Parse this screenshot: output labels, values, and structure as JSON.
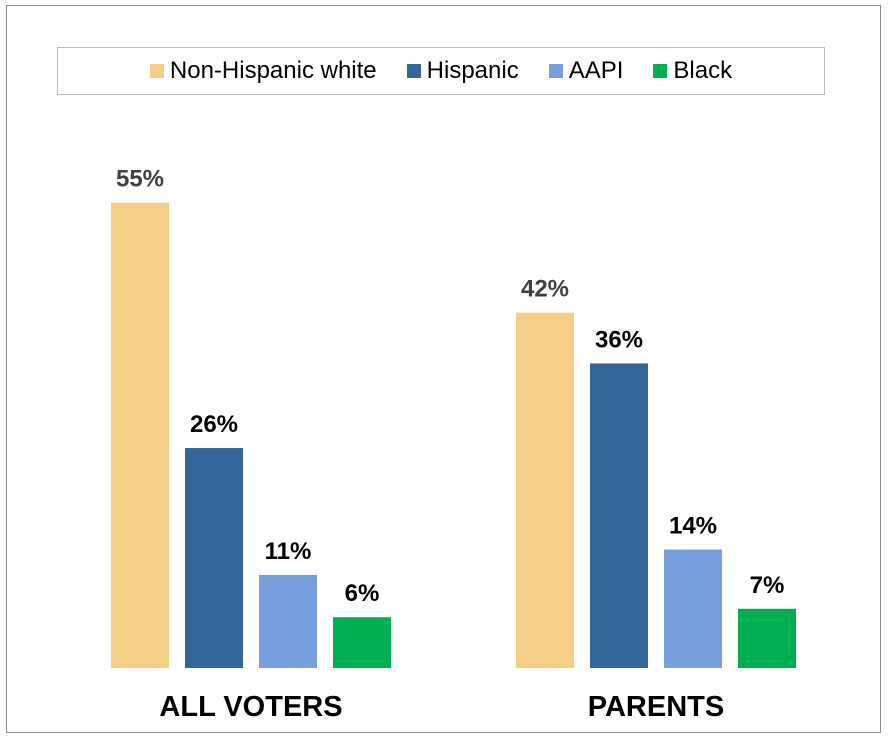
{
  "chart_data": {
    "type": "bar",
    "title": "",
    "xlabel": "",
    "ylabel": "",
    "categories": [
      "ALL VOTERS",
      "PARENTS"
    ],
    "series": [
      {
        "name": "Non-Hispanic white",
        "values": [
          55,
          42
        ],
        "labels": [
          "55%",
          "42%"
        ],
        "color": "#F5CF87"
      },
      {
        "name": "Hispanic",
        "values": [
          26,
          36
        ],
        "labels": [
          "26%",
          "36%"
        ],
        "color": "#346699"
      },
      {
        "name": "AAPI",
        "values": [
          11,
          14
        ],
        "labels": [
          "11%",
          "14%"
        ],
        "color": "#779FDE"
      },
      {
        "name": "Black",
        "values": [
          6,
          7
        ],
        "labels": [
          "6%",
          "7%"
        ],
        "color": "#00B050"
      }
    ],
    "ylim": [
      0,
      60
    ],
    "grid": false,
    "legend_position": "top",
    "label_colors": {
      "non_hispanic_white": "#404040",
      "other": "#000000"
    }
  }
}
